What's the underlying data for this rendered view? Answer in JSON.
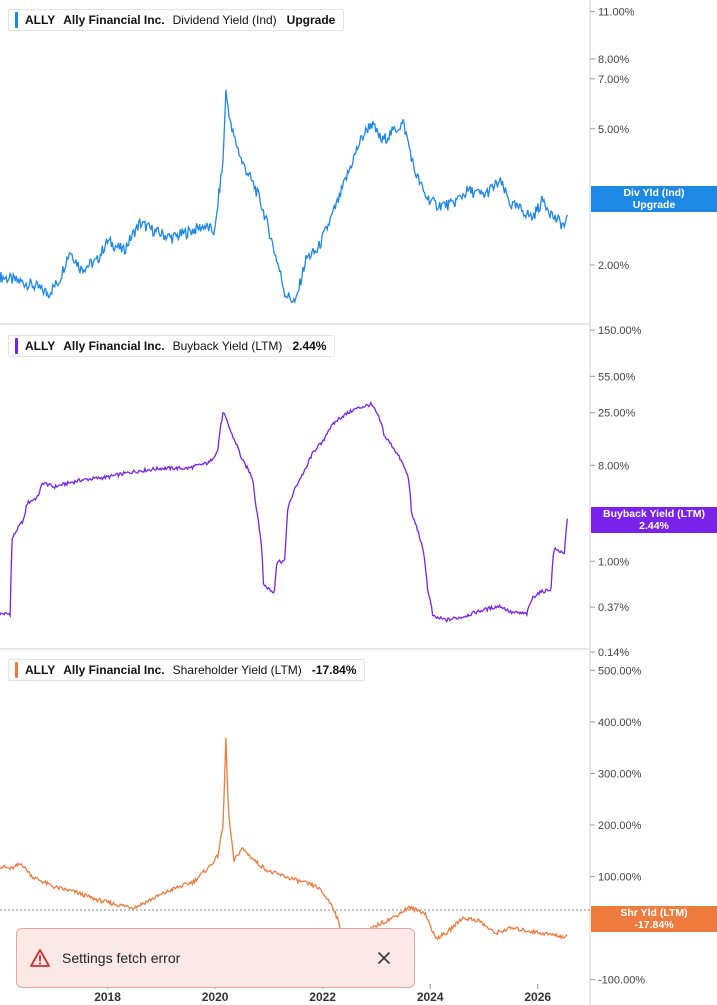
{
  "colors": {
    "div": "#1e88e5",
    "buyback": "#7b22ea",
    "shareholder": "#f07b3f",
    "grid": "#d0d0d0",
    "toast_icon": "#d32f2f"
  },
  "chart_data": [
    {
      "type": "line",
      "ticker": "ALLY",
      "company": "Ally Financial Inc.",
      "metric": "Dividend Yield (Ind)",
      "value_text": "Upgrade",
      "tag_lines": [
        "Div Yld (Ind)",
        "Upgrade"
      ],
      "yscale": "log",
      "ylim": [
        1.4,
        11.5
      ],
      "y_ticks": [
        11,
        8,
        7,
        5,
        2
      ],
      "y_tick_labels": [
        "11.00%",
        "8.00%",
        "7.00%",
        "5.00%",
        "2.00%"
      ],
      "x": [
        2016.0,
        2016.3,
        2016.6,
        2016.9,
        2017.1,
        2017.3,
        2017.5,
        2017.8,
        2018.0,
        2018.3,
        2018.6,
        2018.9,
        2019.2,
        2019.5,
        2019.8,
        2020.0,
        2020.15,
        2020.2,
        2020.3,
        2020.5,
        2020.8,
        2021.1,
        2021.3,
        2021.5,
        2021.7,
        2021.9,
        2022.1,
        2022.3,
        2022.5,
        2022.7,
        2022.9,
        2023.1,
        2023.3,
        2023.5,
        2023.7,
        2023.9,
        2024.1,
        2024.4,
        2024.7,
        2025.0,
        2025.3,
        2025.5,
        2025.7,
        2025.9,
        2026.1,
        2026.3,
        2026.5,
        2026.55
      ],
      "values": [
        1.85,
        1.8,
        1.75,
        1.65,
        1.8,
        2.2,
        1.95,
        2.05,
        2.35,
        2.2,
        2.65,
        2.5,
        2.4,
        2.5,
        2.6,
        2.5,
        4.0,
        6.4,
        5.0,
        4.0,
        3.2,
        2.2,
        1.65,
        1.55,
        2.1,
        2.2,
        2.6,
        3.1,
        3.8,
        4.6,
        5.2,
        4.6,
        4.9,
        5.2,
        3.8,
        3.2,
        3.0,
        3.0,
        3.3,
        3.2,
        3.5,
        3.0,
        2.9,
        2.75,
        3.1,
        2.75,
        2.6,
        2.7
      ]
    },
    {
      "type": "line",
      "ticker": "ALLY",
      "company": "Ally Financial Inc.",
      "metric": "Buyback Yield (LTM)",
      "value_text": "2.44%",
      "tag_lines": [
        "Buyback Yield (LTM)",
        "2.44%"
      ],
      "yscale": "log",
      "ylim": [
        0.14,
        150
      ],
      "y_ticks": [
        150,
        55,
        25,
        8,
        1,
        0.37,
        0.14
      ],
      "y_tick_labels": [
        "150.00%",
        "55.00%",
        "25.00%",
        "8.00%",
        "1.00%",
        "0.37%",
        "0.14%"
      ],
      "x": [
        2016.0,
        2016.2,
        2016.22,
        2016.45,
        2016.5,
        2016.7,
        2016.8,
        2017.0,
        2017.5,
        2018.0,
        2018.5,
        2019.0,
        2019.5,
        2019.9,
        2020.05,
        2020.15,
        2020.3,
        2020.5,
        2020.7,
        2020.75,
        2020.9,
        2021.1,
        2021.15,
        2021.3,
        2021.35,
        2021.5,
        2021.7,
        2021.75,
        2021.9,
        2022.0,
        2022.1,
        2022.3,
        2022.6,
        2022.9,
        2023.0,
        2023.1,
        2023.15,
        2023.3,
        2023.6,
        2023.65,
        2023.9,
        2023.95,
        2024.05,
        2024.3,
        2024.6,
        2025.0,
        2025.3,
        2025.5,
        2025.8,
        2025.9,
        2026.0,
        2026.25,
        2026.3,
        2026.5,
        2026.55
      ],
      "values": [
        0.32,
        0.32,
        1.6,
        2.5,
        3.5,
        4.0,
        5.5,
        5.0,
        5.8,
        6.2,
        7.0,
        7.5,
        7.5,
        8.5,
        11,
        25,
        16,
        9.0,
        6.0,
        3.5,
        0.6,
        0.5,
        1.0,
        1.0,
        3.0,
        5.0,
        7.5,
        9.0,
        12,
        13,
        17,
        22,
        27,
        30,
        25,
        19,
        15,
        12,
        6,
        2.8,
        1.0,
        0.55,
        0.3,
        0.28,
        0.3,
        0.35,
        0.38,
        0.33,
        0.32,
        0.45,
        0.5,
        0.55,
        1.3,
        1.2,
        2.44
      ]
    },
    {
      "type": "line",
      "ticker": "ALLY",
      "company": "Ally Financial Inc.",
      "metric": "Shareholder Yield (LTM)",
      "value_text": "-17.84%",
      "tag_lines": [
        "Shr Yld (LTM)",
        "-17.84%"
      ],
      "yscale": "linear",
      "ylim": [
        -120,
        520
      ],
      "y_ticks": [
        500,
        400,
        300,
        200,
        100,
        -100
      ],
      "y_tick_labels": [
        "500.00%",
        "400.00%",
        "300.00%",
        "200.00%",
        "100.00%",
        "-100.00%"
      ],
      "x": [
        2016.0,
        2016.2,
        2016.4,
        2016.6,
        2017.0,
        2017.4,
        2017.8,
        2018.2,
        2018.5,
        2018.9,
        2019.2,
        2019.6,
        2019.9,
        2020.05,
        2020.15,
        2020.2,
        2020.25,
        2020.35,
        2020.5,
        2020.8,
        2021.0,
        2021.3,
        2021.6,
        2021.9,
        2022.1,
        2022.2,
        2022.3,
        2022.4,
        2022.6,
        2022.8,
        2023.0,
        2023.3,
        2023.6,
        2023.9,
        2024.1,
        2024.3,
        2024.6,
        2024.9,
        2025.2,
        2025.5,
        2025.8,
        2026.1,
        2026.4,
        2026.55
      ],
      "values": [
        120,
        115,
        125,
        100,
        80,
        70,
        55,
        45,
        40,
        60,
        75,
        90,
        120,
        140,
        200,
        370,
        220,
        130,
        155,
        125,
        110,
        100,
        90,
        80,
        55,
        40,
        10,
        -40,
        -20,
        -10,
        5,
        20,
        40,
        30,
        -20,
        -10,
        20,
        15,
        -10,
        0,
        -5,
        -10,
        -15,
        -17.84
      ]
    }
  ],
  "x_axis": {
    "years": [
      "2018",
      "2020",
      "2022",
      "2024",
      "2026"
    ],
    "year_values": [
      2018,
      2020,
      2022,
      2024,
      2026
    ]
  },
  "toast": {
    "message": "Settings fetch error"
  }
}
